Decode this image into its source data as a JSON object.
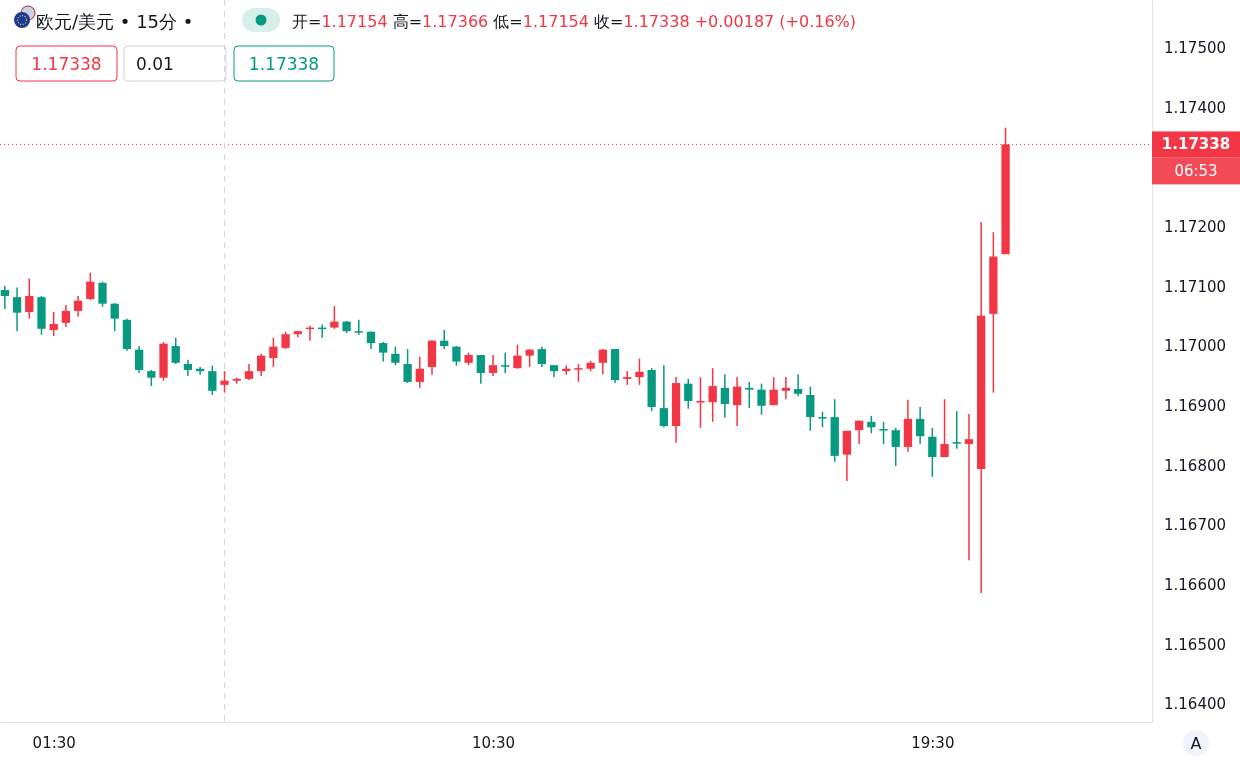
{
  "chart_data": {
    "type": "candlestick",
    "title": "欧元/美元 • 15分 •",
    "subtitle": "开=1.17154 高=1.17366 低=1.17154 收=1.17338 +0.00187 (+0.16%)",
    "x": [
      0.5,
      0.75,
      1,
      1.25,
      1.5,
      1.75,
      2,
      2.25,
      2.5,
      2.75,
      3,
      3.25,
      3.5,
      3.75,
      4,
      4.25,
      4.5,
      4.75,
      5,
      5.25,
      5.5,
      5.75,
      6,
      6.25,
      6.5,
      6.75,
      7,
      7.25,
      7.5,
      7.75,
      8,
      8.25,
      8.5,
      8.75,
      9,
      9.25,
      9.5,
      9.75,
      10,
      10.25,
      10.5,
      10.75,
      11,
      11.25,
      11.5,
      11.75,
      12,
      12.25,
      12.5,
      12.75,
      13,
      13.25,
      13.5,
      13.75,
      14,
      14.25,
      14.5,
      14.75,
      15,
      15.25,
      15.5,
      15.75,
      16,
      16.25,
      16.5,
      16.75,
      17,
      17.25,
      17.5,
      17.75,
      18,
      18.25,
      18.5,
      18.75,
      19,
      19.25,
      19.5,
      19.75,
      20,
      20.25,
      20.5,
      20.75,
      21
    ],
    "ohlc": [
      [
        1.17094,
        1.17101,
        1.17062,
        1.17084
      ],
      [
        1.17082,
        1.17098,
        1.17025,
        1.17056
      ],
      [
        1.17057,
        1.17113,
        1.17046,
        1.17084
      ],
      [
        1.17082,
        1.17084,
        1.17019,
        1.17029
      ],
      [
        1.17027,
        1.17057,
        1.17017,
        1.17037
      ],
      [
        1.17039,
        1.17069,
        1.17032,
        1.17059
      ],
      [
        1.17059,
        1.17084,
        1.17049,
        1.17076
      ],
      [
        1.17079,
        1.17123,
        1.17077,
        1.17108
      ],
      [
        1.17106,
        1.17108,
        1.17066,
        1.17071
      ],
      [
        1.17071,
        1.17072,
        1.17025,
        1.17046
      ],
      [
        1.17044,
        1.17046,
        1.16992,
        1.16995
      ],
      [
        1.16994,
        1.17,
        1.16955,
        1.1696
      ],
      [
        1.16958,
        1.1696,
        1.16933,
        1.16947
      ],
      [
        1.16947,
        1.17007,
        1.16942,
        1.17004
      ],
      [
        1.17,
        1.17014,
        1.1697,
        1.16972
      ],
      [
        1.1697,
        1.16977,
        1.1695,
        1.1696
      ],
      [
        1.16962,
        1.16965,
        1.16952,
        1.16958
      ],
      [
        1.16958,
        1.16967,
        1.16918,
        1.16925
      ],
      [
        1.16935,
        1.16958,
        1.16922,
        1.16942
      ],
      [
        1.16942,
        1.16947,
        1.16937,
        1.16945
      ],
      [
        1.16945,
        1.1697,
        1.16943,
        1.16958
      ],
      [
        1.16958,
        1.16987,
        1.1695,
        1.16984
      ],
      [
        1.1698,
        1.17014,
        1.16965,
        1.16999
      ],
      [
        1.16997,
        1.17024,
        1.16995,
        1.1702
      ],
      [
        1.1702,
        1.17025,
        1.17015,
        1.17025
      ],
      [
        1.17029,
        1.17034,
        1.17009,
        1.17031
      ],
      [
        1.17031,
        1.17036,
        1.17014,
        1.17029
      ],
      [
        1.17031,
        1.17067,
        1.17029,
        1.17041
      ],
      [
        1.17041,
        1.17042,
        1.17022,
        1.17025
      ],
      [
        1.17025,
        1.17044,
        1.17019,
        1.17024
      ],
      [
        1.17024,
        1.17025,
        1.16995,
        1.17005
      ],
      [
        1.17005,
        1.17007,
        1.16974,
        1.16989
      ],
      [
        1.16987,
        1.16999,
        1.16968,
        1.16972
      ],
      [
        1.1697,
        1.16995,
        1.16938,
        1.1694
      ],
      [
        1.1694,
        1.16982,
        1.1693,
        1.16962
      ],
      [
        1.16965,
        1.1701,
        1.16952,
        1.17009
      ],
      [
        1.17009,
        1.17027,
        1.16995,
        1.17
      ],
      [
        1.16999,
        1.17,
        1.16967,
        1.16974
      ],
      [
        1.16972,
        1.16989,
        1.16968,
        1.16985
      ],
      [
        1.16985,
        1.16985,
        1.16937,
        1.16955
      ],
      [
        1.16955,
        1.16985,
        1.1695,
        1.16968
      ],
      [
        1.16968,
        1.16989,
        1.16955,
        1.16967
      ],
      [
        1.16963,
        1.17002,
        1.16962,
        1.16984
      ],
      [
        1.16984,
        1.16995,
        1.16965,
        1.16994
      ],
      [
        1.16995,
        1.16999,
        1.16965,
        1.1697
      ],
      [
        1.16968,
        1.16968,
        1.16948,
        1.16958
      ],
      [
        1.16958,
        1.16968,
        1.16952,
        1.16962
      ],
      [
        1.16962,
        1.1697,
        1.1694,
        1.16963
      ],
      [
        1.16962,
        1.16975,
        1.16958,
        1.16972
      ],
      [
        1.16972,
        1.16995,
        1.16953,
        1.16994
      ],
      [
        1.16995,
        1.16995,
        1.16938,
        1.16943
      ],
      [
        1.16945,
        1.16958,
        1.16935,
        1.16948
      ],
      [
        1.16948,
        1.16979,
        1.16935,
        1.16957
      ],
      [
        1.1696,
        1.16963,
        1.16891,
        1.16898
      ],
      [
        1.16896,
        1.16968,
        1.16864,
        1.16866
      ],
      [
        1.16866,
        1.16948,
        1.16838,
        1.16938
      ],
      [
        1.16937,
        1.16945,
        1.16895,
        1.16908
      ],
      [
        1.16906,
        1.16948,
        1.16863,
        1.16908
      ],
      [
        1.16906,
        1.16963,
        1.16873,
        1.16933
      ],
      [
        1.1693,
        1.16953,
        1.1688,
        1.16903
      ],
      [
        1.16901,
        1.16948,
        1.16866,
        1.16932
      ],
      [
        1.1693,
        1.1694,
        1.16896,
        1.16927
      ],
      [
        1.16927,
        1.16937,
        1.16885,
        1.169
      ],
      [
        1.16901,
        1.16948,
        1.16901,
        1.16927
      ],
      [
        1.16925,
        1.16948,
        1.16911,
        1.1693
      ],
      [
        1.16928,
        1.16953,
        1.16916,
        1.1692
      ],
      [
        1.16918,
        1.16932,
        1.16858,
        1.16881
      ],
      [
        1.16881,
        1.1689,
        1.16864,
        1.1688
      ],
      [
        1.16881,
        1.16911,
        1.16806,
        1.16816
      ],
      [
        1.16818,
        1.16858,
        1.16774,
        1.16858
      ],
      [
        1.16859,
        1.16875,
        1.16836,
        1.16875
      ],
      [
        1.16873,
        1.16883,
        1.16854,
        1.16864
      ],
      [
        1.16861,
        1.16873,
        1.16836,
        1.16859
      ],
      [
        1.16859,
        1.16863,
        1.16799,
        1.16831
      ],
      [
        1.16831,
        1.1691,
        1.16823,
        1.16878
      ],
      [
        1.16878,
        1.16898,
        1.16836,
        1.16849
      ],
      [
        1.16848,
        1.16863,
        1.16781,
        1.16814
      ],
      [
        1.16814,
        1.16911,
        1.16814,
        1.16836
      ],
      [
        1.16839,
        1.16891,
        1.16828,
        1.16838
      ],
      [
        1.16836,
        1.16886,
        1.16641,
        1.16844
      ],
      [
        1.16794,
        1.17208,
        1.16586,
        1.17051
      ],
      [
        1.17054,
        1.17191,
        1.16922,
        1.1715
      ],
      [
        1.17154,
        1.17366,
        1.17154,
        1.17338
      ]
    ],
    "colors": [
      "#089981",
      "#089981",
      "#f23645",
      "#089981",
      "#f23645",
      "#f23645",
      "#f23645",
      "#f23645",
      "#089981",
      "#089981",
      "#089981",
      "#089981",
      "#089981",
      "#f23645",
      "#089981",
      "#089981",
      "#089981",
      "#089981",
      "#f23645",
      "#f23645",
      "#f23645",
      "#f23645",
      "#f23645",
      "#f23645",
      "#f23645",
      "#f23645",
      "#089981",
      "#f23645",
      "#089981",
      "#089981",
      "#089981",
      "#089981",
      "#089981",
      "#089981",
      "#f23645",
      "#f23645",
      "#089981",
      "#089981",
      "#f23645",
      "#089981",
      "#f23645",
      "#089981",
      "#f23645",
      "#f23645",
      "#089981",
      "#089981",
      "#f23645",
      "#f23645",
      "#f23645",
      "#f23645",
      "#089981",
      "#f23645",
      "#f23645",
      "#089981",
      "#089981",
      "#f23645",
      "#089981",
      "#f23645",
      "#f23645",
      "#089981",
      "#f23645",
      "#089981",
      "#089981",
      "#f23645",
      "#f23645",
      "#089981",
      "#089981",
      "#089981",
      "#089981",
      "#f23645",
      "#f23645",
      "#089981",
      "#089981",
      "#089981",
      "#f23645",
      "#089981",
      "#089981",
      "#f23645",
      "#089981",
      "#f23645",
      "#f23645",
      "#f23645",
      "#f23645"
    ],
    "xlim": [
      0.4,
      24.0
    ],
    "xticks": [
      {
        "value": 1.5,
        "label": "01:30"
      },
      {
        "value": 10.5,
        "label": "10:30"
      },
      {
        "value": 19.5,
        "label": "19:30"
      }
    ],
    "ylim": [
      1.1637,
      1.1758
    ],
    "yticks": [
      {
        "value": 1.164,
        "label": "1.16400"
      },
      {
        "value": 1.165,
        "label": "1.16500"
      },
      {
        "value": 1.166,
        "label": "1.16600"
      },
      {
        "value": 1.167,
        "label": "1.16700"
      },
      {
        "value": 1.168,
        "label": "1.16800"
      },
      {
        "value": 1.169,
        "label": "1.16900"
      },
      {
        "value": 1.17,
        "label": "1.17000"
      },
      {
        "value": 1.171,
        "label": "1.17100"
      },
      {
        "value": 1.172,
        "label": "1.17200"
      },
      {
        "value": 1.174,
        "label": "1.17400"
      },
      {
        "value": 1.175,
        "label": "1.17500"
      }
    ],
    "grid": false,
    "ref_lines": [
      {
        "axis": "y",
        "value": 1.17338,
        "label": "1.17338",
        "color": "#f23645",
        "line_style": "dotted"
      },
      {
        "axis": "x",
        "value": 5,
        "label": null,
        "color": "#d1d4dc",
        "line_style": "dashed"
      }
    ],
    "annotations": [
      "1.17338",
      "0.01",
      "1.17338",
      "06:53",
      "A"
    ]
  }
}
